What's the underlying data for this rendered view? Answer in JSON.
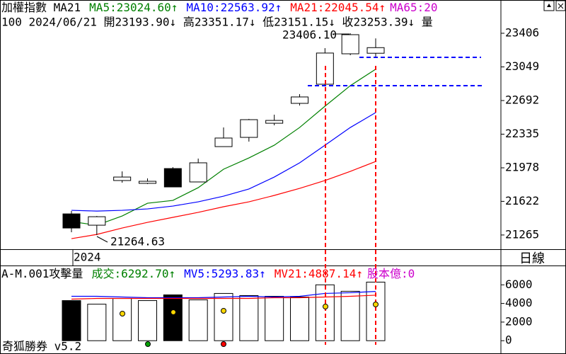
{
  "chart_data": [
    {
      "type": "candlestick",
      "title": "加權指數 MA21",
      "info": "100 2024/06/21 開23193.90↓ 高23351.17↓ 低23151.15↓ 收23253.39↓ 量",
      "extra_labels": [
        {
          "text": "MA65:20",
          "color": "#cc00cc"
        }
      ],
      "annotations": [
        "23406.10",
        "21264.63"
      ],
      "period_label": "日線",
      "categories": [
        "2024",
        null,
        null,
        null,
        null,
        null,
        null,
        null,
        null,
        null,
        null,
        null,
        null
      ],
      "open": [
        21489,
        21369,
        21843,
        21813,
        21970,
        21828,
        22203,
        22301,
        22451,
        22662,
        22865,
        23188,
        23193.9
      ],
      "high": [
        21520,
        21467,
        21940,
        21865,
        21985,
        22076,
        22406,
        22497,
        22542,
        22760,
        23248,
        23406.1,
        23351.17
      ],
      "low": [
        21294,
        21264.63,
        21820,
        21805,
        21775,
        21828,
        22203,
        22256,
        22429,
        22639,
        22850,
        23173,
        23151.15
      ],
      "close": [
        21339,
        21459,
        21880,
        21835,
        21775,
        22031,
        22294,
        22489,
        22481,
        22730,
        23196,
        23391,
        23253.39
      ],
      "up_color": "#ffffff",
      "down_color": "#000000",
      "series": [
        {
          "name": "MA5:23024.60↑",
          "color": "#008000",
          "values": [
            21407,
            21369,
            21467,
            21602,
            21632,
            21767,
            21963,
            22083,
            22218,
            22406,
            22632,
            22850,
            23024.6
          ]
        },
        {
          "name": "MA10:22563.92↑",
          "color": "#0000ff",
          "values": [
            21527,
            21519,
            21527,
            21542,
            21572,
            21617,
            21677,
            21753,
            21880,
            22031,
            22218,
            22406,
            22563.92
          ]
        },
        {
          "name": "MA21:22045.54↑",
          "color": "#ff0000",
          "values": [
            21226,
            21271,
            21339,
            21399,
            21452,
            21505,
            21565,
            21617,
            21685,
            21760,
            21843,
            21940,
            22045.54
          ]
        }
      ],
      "ylim": [
        21114,
        23759
      ],
      "yticks": [
        21265,
        21622,
        21978,
        22335,
        22692,
        23049,
        23406
      ]
    },
    {
      "type": "bar",
      "title": "A-M.001攻擊量",
      "name": "成交:6292.70↑",
      "name_color": "#008000",
      "extra_labels": [
        {
          "text": "股本億:0",
          "color": "#cc00cc"
        }
      ],
      "footer": "奇狐勝券 v5.2",
      "values": [
        4308,
        3923,
        4538,
        4308,
        4923,
        4385,
        5077,
        4846,
        4769,
        4692,
        6000,
        5308,
        6292.7
      ],
      "colors": [
        "#000000",
        "#ffffff",
        "#ffffff",
        "#ffffff",
        "#000000",
        "#ffffff",
        "#ffffff",
        "#ffffff",
        "#ffffff",
        "#ffffff",
        "#ffffff",
        "#ffffff",
        "#ffffff"
      ],
      "series": [
        {
          "name": "MV5:5293.83↑",
          "color": "#0000ff",
          "values": [
            4769,
            4769,
            4692,
            4615,
            4615,
            4615,
            4692,
            4769,
            4692,
            4769,
            5077,
            5154,
            5293.83
          ]
        },
        {
          "name": "MV21:4887.14↑",
          "color": "#ff0000",
          "values": [
            4462,
            4538,
            4538,
            4538,
            4538,
            4538,
            4538,
            4538,
            4615,
            4615,
            4692,
            4769,
            4887.14
          ]
        }
      ],
      "ylim": [
        -1200,
        8000
      ],
      "yticks": [
        0,
        2000,
        4000,
        6000
      ]
    }
  ]
}
